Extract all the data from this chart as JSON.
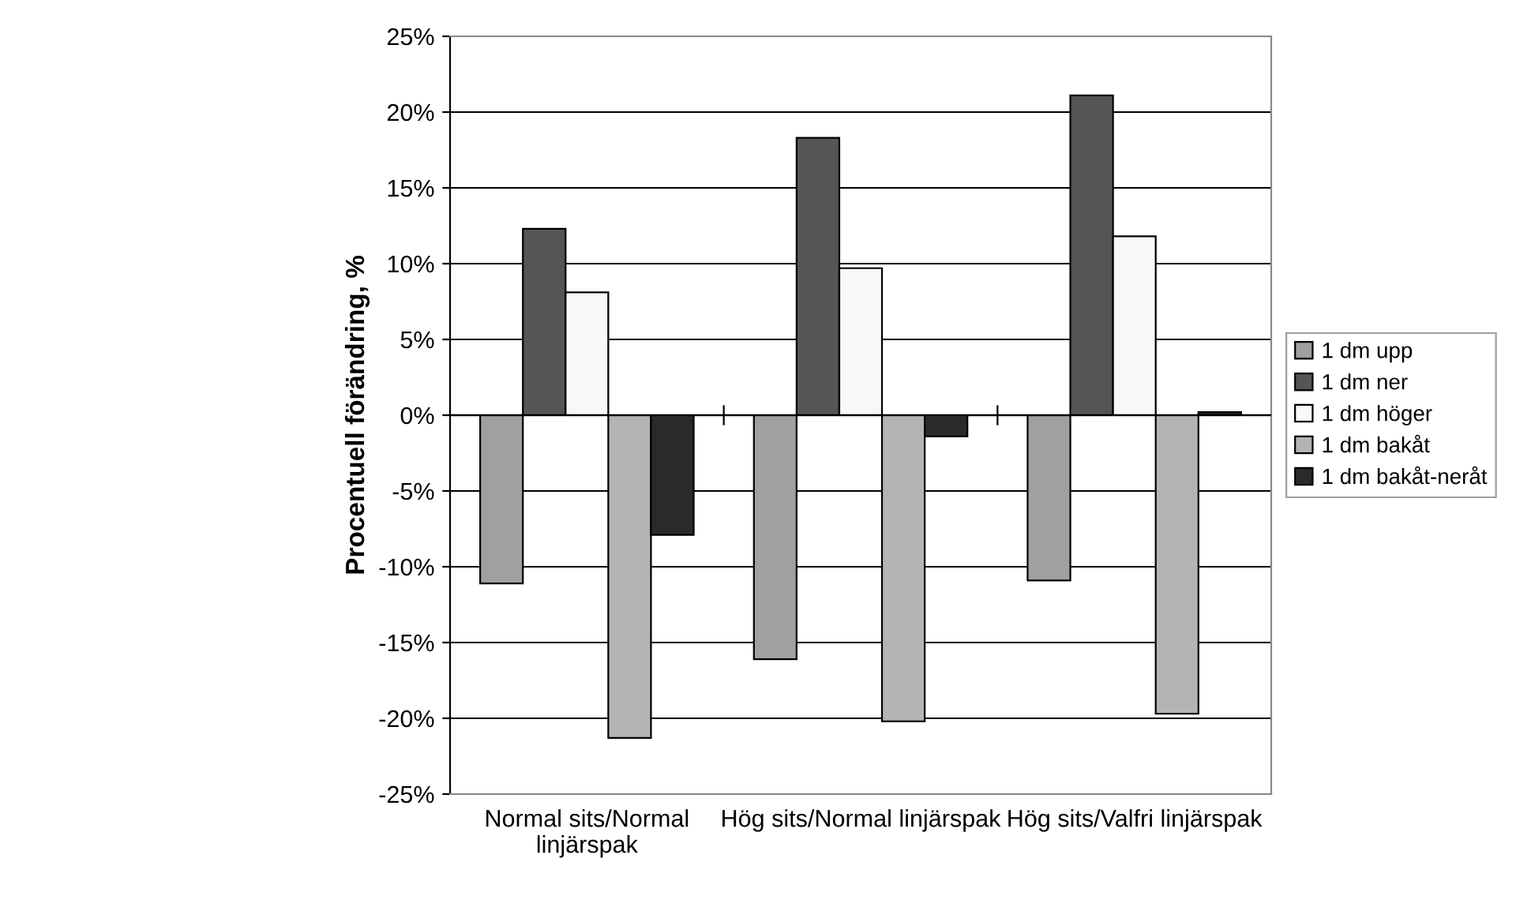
{
  "chart_data": {
    "type": "bar",
    "ylabel": "Procentuell förändring, %",
    "categories": [
      "Normal sits/Normal linjärspak",
      "Hög sits/Normal linjärspak",
      "Hög sits/Valfri linjärspak"
    ],
    "series": [
      {
        "name": "1 dm upp",
        "color": "#a0a0a0",
        "values": [
          -11.1,
          -16.1,
          -10.9
        ]
      },
      {
        "name": "1 dm ner",
        "color": "#555555",
        "values": [
          12.3,
          18.3,
          21.1
        ]
      },
      {
        "name": "1 dm höger",
        "color": "#f8f8f8",
        "values": [
          8.1,
          9.7,
          11.8
        ]
      },
      {
        "name": "1 dm bakåt",
        "color": "#b4b4b4",
        "values": [
          -21.3,
          -20.2,
          -19.7
        ]
      },
      {
        "name": "1 dm bakåt-neråt",
        "color": "#2a2a2a",
        "values": [
          -7.9,
          -1.4,
          0.2
        ]
      }
    ],
    "ylim": [
      -25,
      25
    ],
    "yticks": [
      {
        "value": -25,
        "label": "-25%"
      },
      {
        "value": -20,
        "label": "-20%"
      },
      {
        "value": -15,
        "label": "-15%"
      },
      {
        "value": -10,
        "label": "-10%"
      },
      {
        "value": -5,
        "label": "-5%"
      },
      {
        "value": 0,
        "label": "0%"
      },
      {
        "value": 5,
        "label": "5%"
      },
      {
        "value": 10,
        "label": "10%"
      },
      {
        "value": 15,
        "label": "15%"
      },
      {
        "value": 20,
        "label": "20%"
      },
      {
        "value": 25,
        "label": "25%"
      }
    ],
    "grid": "y",
    "legend": "right"
  }
}
